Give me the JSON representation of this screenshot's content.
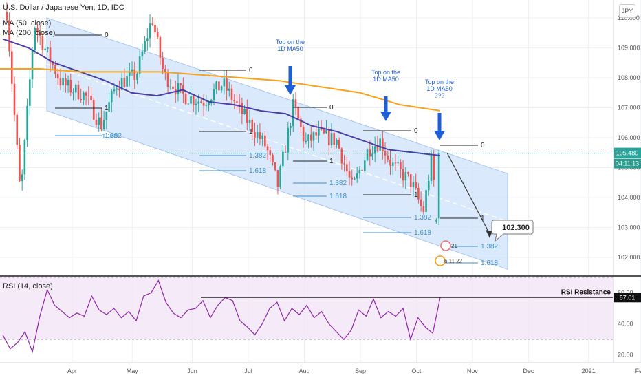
{
  "main_chart": {
    "title": "U.S. Dollar / Japanese Yen, 1D, IDC",
    "ma50_label": "MA (50, close)",
    "ma200_label": "MA (200, close)",
    "currency": "JPY",
    "last_price": "105.480",
    "countdown": "04:11:13",
    "target_label": "102.300",
    "event_badge_1": "21",
    "event_badge_2": "6 11 22",
    "price_axis": {
      "ticks": [
        "110.000",
        "109.000",
        "108.000",
        "107.000",
        "106.000",
        "105.000",
        "104.000",
        "103.000",
        "102.000"
      ]
    },
    "annotations": [
      {
        "line1": "Top on the",
        "line2": "1D MA50",
        "line3": ""
      },
      {
        "line1": "Top on the",
        "line2": "1D MA50",
        "line3": ""
      },
      {
        "line1": "Top on the",
        "line2": "1D MA50",
        "line3": "???"
      }
    ],
    "fib_sets": [
      {
        "zero": "0",
        "one": "1",
        "l1382": "1.382",
        "l1618": ""
      },
      {
        "zero": "0",
        "one": "1",
        "l1382": "1.382",
        "l1618": "1.618"
      },
      {
        "zero": "0",
        "one": "1",
        "l1382": "1.382",
        "l1618": "1.618"
      },
      {
        "zero": "0",
        "one": "1",
        "l1382": "1.382",
        "l1618": "1.618"
      },
      {
        "zero": "0",
        "one": "1",
        "l1382": "1.382",
        "l1618": "1.618"
      },
      {
        "zero": "0",
        "one": "1",
        "l1382": "1.382",
        "l1618": "1.618"
      }
    ]
  },
  "rsi_panel": {
    "label": "RSI (14, close)",
    "value": "57.01",
    "resistance_label": "RSI Resistance",
    "axis_ticks": [
      "60.00",
      "40.00",
      "20.00"
    ]
  },
  "time_axis": {
    "labels": [
      "Apr",
      "May",
      "Jun",
      "Jul",
      "Aug",
      "Sep",
      "Oct",
      "Nov",
      "Dec",
      "2021",
      "Feb"
    ]
  },
  "colors": {
    "bull": "#26a69a",
    "bear": "#ef5350",
    "ma50": "#4a3ea8",
    "ma200": "#f7a21b",
    "channel": "#cfe1fb",
    "rsi": "#8e24aa",
    "fib": "#3a8fd1",
    "arrow": "#1e5fd6"
  },
  "chart_data": [
    {
      "type": "candlestick",
      "symbol": "USDJPY",
      "timeframe": "1D",
      "ylim": [
        101.4,
        110.6
      ],
      "x_labels": [
        "Apr",
        "May",
        "Jun",
        "Jul",
        "Aug",
        "Sep",
        "Oct",
        "Nov",
        "Dec",
        "2021",
        "Feb"
      ],
      "last_price": 105.48,
      "ma50": [
        109.3,
        109.0,
        108.5,
        108.2,
        107.9,
        107.5,
        107.4,
        107.6,
        107.2,
        107.1,
        106.9,
        106.8,
        106.4,
        106.2,
        105.9,
        105.6,
        105.5,
        105.4
      ],
      "ma200": [
        108.3,
        108.3,
        108.2,
        108.2,
        108.2,
        108.1,
        108.0,
        107.9,
        107.7,
        107.5,
        107.1,
        106.9
      ],
      "channel": {
        "upper_start": 110.0,
        "upper_end": 104.8,
        "lower_start": 106.9,
        "lower_end": 101.6
      },
      "projection_target": 102.3,
      "key_levels": [
        {
          "name": "Top on the 1D MA50",
          "price": 106.9
        },
        {
          "name": "Top on the 1D MA50",
          "price": 106.0
        },
        {
          "name": "Top on the 1D MA50 ???",
          "price": 105.5
        }
      ]
    },
    {
      "type": "line",
      "name": "RSI (14, close)",
      "ylim": [
        15,
        70
      ],
      "yticks": [
        60,
        40,
        20
      ],
      "bands": [
        70,
        30
      ],
      "resistance": 57.01,
      "values": [
        33,
        24,
        28,
        35,
        22,
        45,
        62,
        52,
        48,
        44,
        47,
        45,
        58,
        49,
        46,
        50,
        44,
        48,
        42,
        58,
        60,
        68,
        54,
        47,
        44,
        49,
        50,
        55,
        44,
        52,
        57,
        55,
        42,
        38,
        33,
        40,
        50,
        54,
        42,
        50,
        46,
        52,
        44,
        48,
        40,
        35,
        30,
        36,
        49,
        45,
        56,
        44,
        48,
        45,
        50,
        30,
        44,
        38,
        34,
        57
      ]
    }
  ]
}
